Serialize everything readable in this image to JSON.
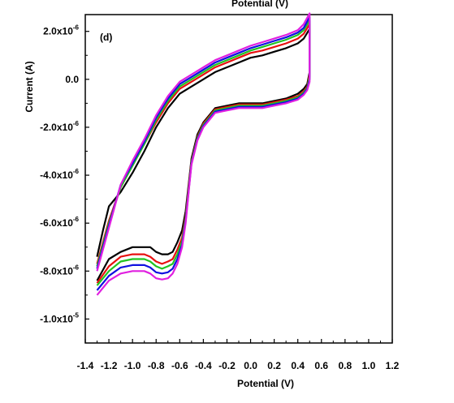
{
  "chart_data": {
    "type": "line",
    "panel_label": "(d)",
    "top_axis_label": "Potential (V)",
    "xlabel": "Potential (V)",
    "ylabel": "Current (A)",
    "xlim": [
      -1.4,
      1.2
    ],
    "ylim": [
      -1.1e-05,
      2.7e-06
    ],
    "x_ticks": [
      {
        "value": -1.4,
        "label": "-1.4"
      },
      {
        "value": -1.2,
        "label": "-1.2"
      },
      {
        "value": -1.0,
        "label": "-1.0"
      },
      {
        "value": -0.8,
        "label": "-0.8"
      },
      {
        "value": -0.6,
        "label": "-0.6"
      },
      {
        "value": -0.4,
        "label": "-0.4"
      },
      {
        "value": -0.2,
        "label": "-0.2"
      },
      {
        "value": 0.0,
        "label": "0.0"
      },
      {
        "value": 0.2,
        "label": "0.2"
      },
      {
        "value": 0.4,
        "label": "0.4"
      },
      {
        "value": 0.6,
        "label": "0.6"
      },
      {
        "value": 0.8,
        "label": "0.8"
      },
      {
        "value": 1.0,
        "label": "1.0"
      },
      {
        "value": 1.2,
        "label": "1.2"
      }
    ],
    "y_ticks": [
      {
        "value": 2e-06,
        "label": "2.0x10",
        "exp": "-6"
      },
      {
        "value": 0.0,
        "label": "0.0",
        "exp": ""
      },
      {
        "value": -2e-06,
        "label": "-2.0x10",
        "exp": "-6"
      },
      {
        "value": -4e-06,
        "label": "-4.0x10",
        "exp": "-6"
      },
      {
        "value": -6e-06,
        "label": "-6.0x10",
        "exp": "-6"
      },
      {
        "value": -8e-06,
        "label": "-8.0x10",
        "exp": "-6"
      },
      {
        "value": -1e-05,
        "label": "-1.0x10",
        "exp": "-5"
      }
    ],
    "grid": false,
    "legend": "none",
    "series": [
      {
        "color": "#000000",
        "x": [
          -1.3,
          -1.25,
          -1.2,
          -1.1,
          -1.0,
          -0.9,
          -0.8,
          -0.7,
          -0.6,
          -0.5,
          -0.4,
          -0.3,
          -0.2,
          -0.1,
          0.0,
          0.1,
          0.2,
          0.3,
          0.4,
          0.45,
          0.5,
          0.5,
          0.48,
          0.45,
          0.4,
          0.3,
          0.2,
          0.1,
          0.0,
          -0.1,
          -0.2,
          -0.3,
          -0.4,
          -0.45,
          -0.5,
          -0.52,
          -0.55,
          -0.58,
          -0.62,
          -0.66,
          -0.7,
          -0.75,
          -0.8,
          -0.85,
          -0.9,
          -1.0,
          -1.1,
          -1.2,
          -1.3
        ],
        "y": [
          -7.4e-06,
          -6.3e-06,
          -5.3e-06,
          -4.7e-06,
          -3.9e-06,
          -3e-06,
          -2e-06,
          -1.2e-06,
          -6e-07,
          -3e-07,
          0.0,
          3e-07,
          5e-07,
          7e-07,
          9e-07,
          1e-06,
          1.15e-06,
          1.3e-06,
          1.5e-06,
          1.7e-06,
          2.1e-06,
          3e-07,
          -2e-07,
          -4e-07,
          -6e-07,
          -8e-07,
          -9e-07,
          -1e-06,
          -1e-06,
          -1e-06,
          -1.1e-06,
          -1.2e-06,
          -1.8e-06,
          -2.3e-06,
          -3.3e-06,
          -4.2e-06,
          -5.5e-06,
          -6.3e-06,
          -6.8e-06,
          -7.2e-06,
          -7.3e-06,
          -7.3e-06,
          -7.2e-06,
          -7e-06,
          -7e-06,
          -7e-06,
          -7.2e-06,
          -7.5e-06,
          -8.4e-06
        ]
      },
      {
        "color": "#e81010",
        "x": [
          -1.3,
          -1.25,
          -1.2,
          -1.1,
          -1.0,
          -0.9,
          -0.8,
          -0.7,
          -0.6,
          -0.5,
          -0.4,
          -0.3,
          -0.2,
          -0.1,
          0.0,
          0.1,
          0.2,
          0.3,
          0.4,
          0.45,
          0.5,
          0.5,
          0.48,
          0.45,
          0.4,
          0.3,
          0.2,
          0.1,
          0.0,
          -0.1,
          -0.2,
          -0.3,
          -0.4,
          -0.45,
          -0.5,
          -0.52,
          -0.55,
          -0.58,
          -0.62,
          -0.66,
          -0.7,
          -0.75,
          -0.8,
          -0.85,
          -0.9,
          -1.0,
          -1.1,
          -1.2,
          -1.3
        ],
        "y": [
          -7.7e-06,
          -6.8e-06,
          -5.9e-06,
          -4.5e-06,
          -3.6e-06,
          -2.7e-06,
          -1.8e-06,
          -1e-06,
          -4e-07,
          -1e-07,
          2e-07,
          5e-07,
          7e-07,
          9e-07,
          1.1e-06,
          1.2e-06,
          1.35e-06,
          1.5e-06,
          1.7e-06,
          1.9e-06,
          2.3e-06,
          2e-07,
          -3e-07,
          -5e-07,
          -7e-07,
          -8.5e-07,
          -9.5e-07,
          -1.05e-06,
          -1.05e-06,
          -1.05e-06,
          -1.15e-06,
          -1.25e-06,
          -1.85e-06,
          -2.4e-06,
          -3.4e-06,
          -4.3e-06,
          -5.7e-06,
          -6.6e-06,
          -7.1e-06,
          -7.5e-06,
          -7.6e-06,
          -7.7e-06,
          -7.6e-06,
          -7.4e-06,
          -7.3e-06,
          -7.3e-06,
          -7.4e-06,
          -7.8e-06,
          -8.5e-06
        ]
      },
      {
        "color": "#22c422",
        "x": [
          -1.3,
          -1.25,
          -1.2,
          -1.1,
          -1.0,
          -0.9,
          -0.8,
          -0.7,
          -0.6,
          -0.5,
          -0.4,
          -0.3,
          -0.2,
          -0.1,
          0.0,
          0.1,
          0.2,
          0.3,
          0.4,
          0.45,
          0.5,
          0.5,
          0.48,
          0.45,
          0.4,
          0.3,
          0.2,
          0.1,
          0.0,
          -0.1,
          -0.2,
          -0.3,
          -0.4,
          -0.45,
          -0.5,
          -0.52,
          -0.55,
          -0.58,
          -0.62,
          -0.66,
          -0.7,
          -0.75,
          -0.8,
          -0.85,
          -0.9,
          -1.0,
          -1.1,
          -1.2,
          -1.3
        ],
        "y": [
          -7.8e-06,
          -6.9e-06,
          -6e-06,
          -4.5e-06,
          -3.6e-06,
          -2.7e-06,
          -1.7e-06,
          -9e-07,
          -3e-07,
          0.0,
          3e-07,
          6e-07,
          8e-07,
          1e-06,
          1.2e-06,
          1.35e-06,
          1.5e-06,
          1.65e-06,
          1.85e-06,
          2.05e-06,
          2.45e-06,
          1e-07,
          -3.5e-07,
          -5.5e-07,
          -7.5e-07,
          -9e-07,
          -1e-06,
          -1.1e-06,
          -1.1e-06,
          -1.1e-06,
          -1.2e-06,
          -1.3e-06,
          -1.9e-06,
          -2.45e-06,
          -3.45e-06,
          -4.4e-06,
          -5.8e-06,
          -6.75e-06,
          -7.3e-06,
          -7.7e-06,
          -7.8e-06,
          -7.9e-06,
          -7.8e-06,
          -7.6e-06,
          -7.5e-06,
          -7.5e-06,
          -7.6e-06,
          -8e-06,
          -8.6e-06
        ]
      },
      {
        "color": "#1010e0",
        "x": [
          -1.3,
          -1.25,
          -1.2,
          -1.1,
          -1.0,
          -0.9,
          -0.8,
          -0.7,
          -0.6,
          -0.5,
          -0.4,
          -0.3,
          -0.2,
          -0.1,
          0.0,
          0.1,
          0.2,
          0.3,
          0.4,
          0.45,
          0.5,
          0.5,
          0.48,
          0.45,
          0.4,
          0.3,
          0.2,
          0.1,
          0.0,
          -0.1,
          -0.2,
          -0.3,
          -0.4,
          -0.45,
          -0.5,
          -0.52,
          -0.55,
          -0.58,
          -0.62,
          -0.66,
          -0.7,
          -0.75,
          -0.8,
          -0.85,
          -0.9,
          -1.0,
          -1.1,
          -1.2,
          -1.3
        ],
        "y": [
          -7.9e-06,
          -7e-06,
          -6.1e-06,
          -4.4e-06,
          -3.5e-06,
          -2.6e-06,
          -1.6e-06,
          -8e-07,
          -2e-07,
          1e-07,
          4e-07,
          7e-07,
          9e-07,
          1.1e-06,
          1.3e-06,
          1.45e-06,
          1.6e-06,
          1.75e-06,
          1.95e-06,
          2.15e-06,
          2.6e-06,
          0.0,
          -4e-07,
          -6e-07,
          -8e-07,
          -9.5e-07,
          -1.05e-06,
          -1.15e-06,
          -1.15e-06,
          -1.15e-06,
          -1.25e-06,
          -1.35e-06,
          -1.95e-06,
          -2.5e-06,
          -3.5e-06,
          -4.45e-06,
          -5.9e-06,
          -6.9e-06,
          -7.5e-06,
          -7.9e-06,
          -8.05e-06,
          -8.1e-06,
          -8.05e-06,
          -7.85e-06,
          -7.75e-06,
          -7.75e-06,
          -7.85e-06,
          -8.2e-06,
          -8.8e-06
        ]
      },
      {
        "color": "#e020e0",
        "x": [
          -1.3,
          -1.25,
          -1.2,
          -1.1,
          -1.0,
          -0.9,
          -0.8,
          -0.7,
          -0.6,
          -0.5,
          -0.4,
          -0.3,
          -0.2,
          -0.1,
          0.0,
          0.1,
          0.2,
          0.3,
          0.4,
          0.45,
          0.5,
          0.5,
          0.48,
          0.45,
          0.4,
          0.3,
          0.2,
          0.1,
          0.0,
          -0.1,
          -0.2,
          -0.3,
          -0.4,
          -0.45,
          -0.5,
          -0.52,
          -0.55,
          -0.58,
          -0.62,
          -0.66,
          -0.7,
          -0.75,
          -0.8,
          -0.85,
          -0.9,
          -1.0,
          -1.1,
          -1.2,
          -1.3
        ],
        "y": [
          -8e-06,
          -7.1e-06,
          -6.2e-06,
          -4.4e-06,
          -3.4e-06,
          -2.5e-06,
          -1.5e-06,
          -7e-07,
          -1e-07,
          2e-07,
          5e-07,
          8e-07,
          1e-06,
          1.2e-06,
          1.4e-06,
          1.55e-06,
          1.7e-06,
          1.85e-06,
          2.05e-06,
          2.3e-06,
          2.75e-06,
          -1e-07,
          -4.5e-07,
          -6.5e-07,
          -8.5e-07,
          -1e-06,
          -1.1e-06,
          -1.2e-06,
          -1.2e-06,
          -1.2e-06,
          -1.3e-06,
          -1.4e-06,
          -2e-06,
          -2.55e-06,
          -3.55e-06,
          -4.5e-06,
          -6e-06,
          -7e-06,
          -7.7e-06,
          -8.1e-06,
          -8.3e-06,
          -8.35e-06,
          -8.3e-06,
          -8.1e-06,
          -8e-06,
          -8e-06,
          -8.1e-06,
          -8.4e-06,
          -9e-06
        ]
      }
    ]
  }
}
